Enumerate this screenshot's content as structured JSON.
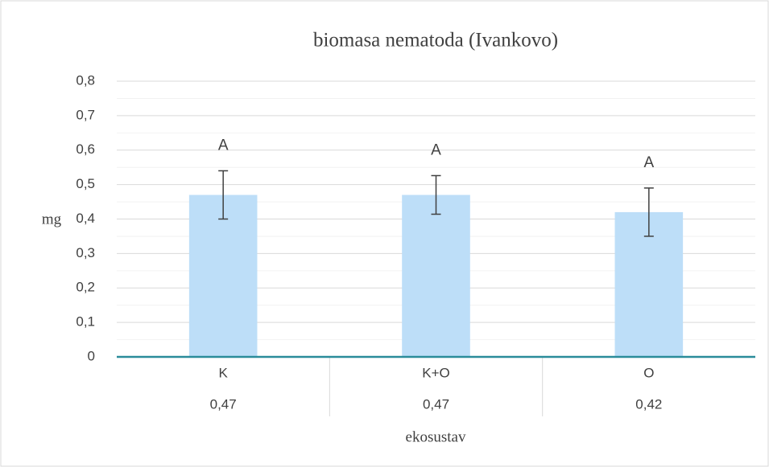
{
  "chart_data": {
    "type": "bar",
    "title": "biomasa nematoda (Ivankovo)",
    "y_label": "mg",
    "x_label": "ekosustav",
    "categories": [
      "K",
      "K+O",
      "O"
    ],
    "values": [
      0.47,
      0.47,
      0.42
    ],
    "value_labels": [
      "0,47",
      "0,47",
      "0,42"
    ],
    "errors": [
      0.07,
      0.056,
      0.07
    ],
    "annotations": [
      "A",
      "A",
      "A"
    ],
    "color": "#bddef8",
    "error_color": "#404040",
    "axis_color": "#2a8c9a",
    "ylim": [
      0,
      0.8
    ],
    "yticks": [
      0,
      {
        "value": 0.1,
        "label": "0,1"
      },
      {
        "value": 0.2,
        "label": "0,2"
      },
      {
        "value": 0.3,
        "label": "0,3"
      },
      {
        "value": 0.4,
        "label": "0,4"
      },
      {
        "value": 0.5,
        "label": "0,5"
      },
      {
        "value": 0.6,
        "label": "0,6"
      },
      {
        "value": 0.7,
        "label": "0,7"
      },
      {
        "value": 0.8,
        "label": "0,8"
      }
    ],
    "minor_yticks": [
      0.05,
      0.15,
      0.25,
      0.35,
      0.45,
      0.55,
      0.65,
      0.75
    ],
    "grid": true
  }
}
